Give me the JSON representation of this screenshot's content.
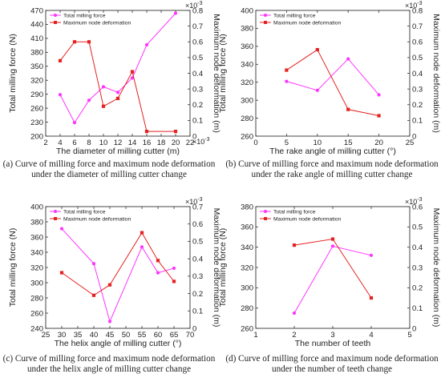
{
  "colors": {
    "milling": "#ff33ff",
    "deform": "#e52222",
    "axis": "#333333"
  },
  "chart_data": [
    {
      "id": "a",
      "type": "line",
      "caption": "(a) Curve of milling force and maximum node deformation under the diameter of milling cutter change",
      "xlabel": "The diameter of milling cutter (m)",
      "x_multiplier": "×10",
      "x_multiplier_exp": "-3",
      "ylabel_left": "Total milling force (N)",
      "ylabel_right": "Maximum node deformation (m)",
      "right_multiplier": "×10",
      "right_multiplier_exp": "-3",
      "xlim": [
        2,
        22
      ],
      "xticks": [
        2,
        4,
        6,
        8,
        10,
        12,
        14,
        16,
        18,
        20,
        22
      ],
      "ylim_left": [
        200,
        470
      ],
      "yticks_left": [
        200,
        230,
        260,
        290,
        320,
        350,
        380,
        410,
        440,
        470
      ],
      "ylim_right": [
        0,
        0.8
      ],
      "yticks_right": [
        0,
        0.1,
        0.2,
        0.3,
        0.4,
        0.5,
        0.6,
        0.7,
        0.8
      ],
      "legend": "top-left",
      "series": [
        {
          "name": "Total milling force",
          "axis": "left",
          "color_key": "milling",
          "marker": "circle",
          "x": [
            4,
            6,
            8,
            10,
            12,
            14,
            16,
            20
          ],
          "values": [
            289,
            229,
            277,
            306,
            294,
            325,
            396,
            464
          ]
        },
        {
          "name": "Maximum node deformation",
          "axis": "right",
          "color_key": "deform",
          "marker": "square",
          "x": [
            4,
            6,
            8,
            10,
            12,
            14,
            16,
            20
          ],
          "values": [
            0.48,
            0.6,
            0.6,
            0.19,
            0.24,
            0.41,
            0.03,
            0.03
          ]
        }
      ]
    },
    {
      "id": "b",
      "type": "line",
      "caption": "(b) Curve of milling force and maximum node deformation under the rake angle of milling cutter change",
      "xlabel": "The rake angle of milling cutter (°)",
      "x_multiplier": "",
      "x_multiplier_exp": "",
      "ylabel_left": "Total milling force (N)",
      "ylabel_right": "Maximum node deformation (m)",
      "right_multiplier": "×10",
      "right_multiplier_exp": "-3",
      "xlim": [
        0,
        25
      ],
      "xticks": [
        0,
        5,
        10,
        15,
        20,
        25
      ],
      "ylim_left": [
        260,
        400
      ],
      "yticks_left": [
        260,
        280,
        300,
        320,
        340,
        360,
        380,
        400
      ],
      "ylim_right": [
        0,
        0.8
      ],
      "yticks_right": [
        0,
        0.1,
        0.2,
        0.3,
        0.4,
        0.5,
        0.6,
        0.7,
        0.8
      ],
      "legend": "top-left",
      "series": [
        {
          "name": "Total milling force",
          "axis": "left",
          "color_key": "milling",
          "marker": "circle",
          "x": [
            5,
            10,
            15,
            20
          ],
          "values": [
            321,
            311,
            346,
            306
          ]
        },
        {
          "name": "Maximum node deformation",
          "axis": "right",
          "color_key": "deform",
          "marker": "square",
          "x": [
            5,
            10,
            15,
            20
          ],
          "values": [
            0.42,
            0.55,
            0.17,
            0.13
          ]
        }
      ]
    },
    {
      "id": "c",
      "type": "line",
      "caption": "(c) Curve of milling force and maximum node deformation under the helix angle of milling cutter change",
      "xlabel": "The helix angle of milling cutter (°)",
      "x_multiplier": "",
      "x_multiplier_exp": "",
      "ylabel_left": "Total milling force (N)",
      "ylabel_right": "Maximum node deformation (m)",
      "right_multiplier": "×10",
      "right_multiplier_exp": "-3",
      "xlim": [
        25,
        70
      ],
      "xticks": [
        25,
        30,
        35,
        40,
        45,
        50,
        55,
        60,
        65,
        70
      ],
      "ylim_left": [
        240,
        400
      ],
      "yticks_left": [
        240,
        260,
        280,
        300,
        320,
        340,
        360,
        380,
        400
      ],
      "ylim_right": [
        0,
        0.7
      ],
      "yticks_right": [
        0,
        0.1,
        0.2,
        0.3,
        0.4,
        0.5,
        0.6,
        0.7
      ],
      "legend": "top-left",
      "series": [
        {
          "name": "Total milling force",
          "axis": "left",
          "color_key": "milling",
          "marker": "circle",
          "x": [
            30,
            40,
            45,
            55,
            60,
            65
          ],
          "values": [
            371,
            325,
            249,
            347,
            313,
            319
          ]
        },
        {
          "name": "Maximum node deformation",
          "axis": "right",
          "color_key": "deform",
          "marker": "square",
          "x": [
            30,
            40,
            45,
            55,
            60,
            65
          ],
          "values": [
            0.32,
            0.19,
            0.25,
            0.55,
            0.39,
            0.27
          ]
        }
      ]
    },
    {
      "id": "d",
      "type": "line",
      "caption": "(d) Curve of milling force and maximum node deformation under the number of teeth change",
      "xlabel": "The number of teeth",
      "x_multiplier": "",
      "x_multiplier_exp": "",
      "ylabel_left": "Total milling force (N)",
      "ylabel_right": "Maximum node deformation (m)",
      "right_multiplier": "×10",
      "right_multiplier_exp": "-3",
      "xlim": [
        1,
        5
      ],
      "xticks": [
        1,
        2,
        3,
        4,
        5
      ],
      "ylim_left": [
        260,
        380
      ],
      "yticks_left": [
        260,
        280,
        300,
        320,
        340,
        360,
        380
      ],
      "ylim_right": [
        0,
        0.6
      ],
      "yticks_right": [
        0,
        0.1,
        0.2,
        0.3,
        0.4,
        0.5,
        0.6
      ],
      "legend": "top-left",
      "series": [
        {
          "name": "Total milling force",
          "axis": "left",
          "color_key": "milling",
          "marker": "circle",
          "x": [
            2,
            3,
            4
          ],
          "values": [
            275,
            341,
            332
          ]
        },
        {
          "name": "Maximum node deformation",
          "axis": "right",
          "color_key": "deform",
          "marker": "square",
          "x": [
            2,
            3,
            4
          ],
          "values": [
            0.41,
            0.44,
            0.15
          ]
        }
      ]
    }
  ]
}
